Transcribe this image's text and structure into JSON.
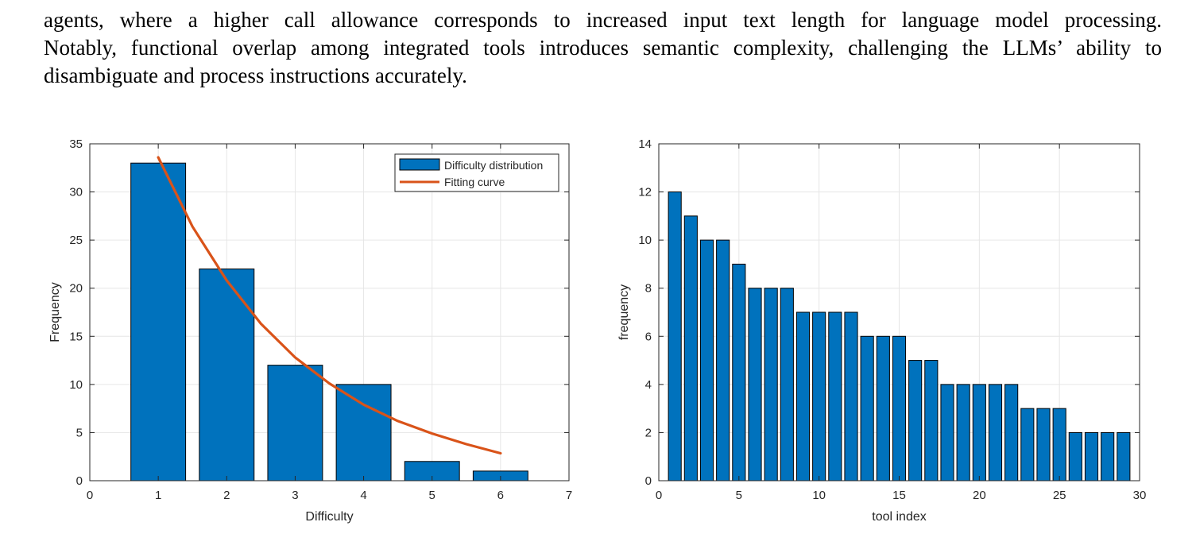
{
  "paragraph": {
    "lines": [
      "agents, where a higher call allowance corresponds to increased input text length for language model processing.",
      "Notably, functional overlap among integrated tools introduces semantic complexity, challenging the LLMs’ ability to",
      "disambiguate and process instructions accurately."
    ]
  },
  "chart_data": [
    {
      "type": "bar",
      "xlabel": "Difficulty",
      "ylabel": "Frequency",
      "xlim": [
        0,
        7
      ],
      "ylim": [
        0,
        35
      ],
      "xticks": [
        0,
        1,
        2,
        3,
        4,
        5,
        6,
        7
      ],
      "yticks": [
        0,
        5,
        10,
        15,
        20,
        25,
        30,
        35
      ],
      "grid": true,
      "legend_position": "top-right",
      "bar_color": "#0072BD",
      "curve_color": "#D95319",
      "categories": [
        1,
        2,
        3,
        4,
        5,
        6
      ],
      "series": [
        {
          "name": "Difficulty distribution",
          "type": "bar",
          "values": [
            33,
            22,
            12,
            10,
            2,
            1
          ]
        },
        {
          "name": "Fitting curve",
          "type": "line",
          "x": [
            1,
            1.5,
            2,
            2.5,
            3,
            3.5,
            4,
            4.5,
            5,
            5.5,
            6
          ],
          "y": [
            33.6,
            26.4,
            20.8,
            16.3,
            12.8,
            10.1,
            7.9,
            6.2,
            4.9,
            3.8,
            2.85
          ]
        }
      ]
    },
    {
      "type": "bar",
      "xlabel": "tool index",
      "ylabel": "frequency",
      "xlim": [
        0,
        30
      ],
      "ylim": [
        0,
        14
      ],
      "xticks": [
        0,
        5,
        10,
        15,
        20,
        25,
        30
      ],
      "yticks": [
        0,
        2,
        4,
        6,
        8,
        10,
        12,
        14
      ],
      "grid": true,
      "bar_color": "#0072BD",
      "categories": [
        1,
        2,
        3,
        4,
        5,
        6,
        7,
        8,
        9,
        10,
        11,
        12,
        13,
        14,
        15,
        16,
        17,
        18,
        19,
        20,
        21,
        22,
        23,
        24,
        25,
        26,
        27,
        28,
        29
      ],
      "values": [
        12,
        11,
        10,
        10,
        9,
        8,
        8,
        8,
        7,
        7,
        7,
        7,
        6,
        6,
        6,
        5,
        5,
        4,
        4,
        4,
        4,
        4,
        3,
        3,
        3,
        2,
        2,
        2,
        2
      ]
    }
  ]
}
